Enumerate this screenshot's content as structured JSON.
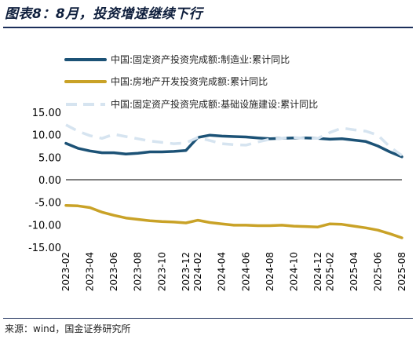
{
  "header": {
    "title": "图表8：8月，投资增速继续下行",
    "source": "来源：wind，国金证券研究所"
  },
  "chart_data": {
    "type": "line",
    "title": "图表8：8月，投资增速继续下行",
    "xlabel": "",
    "ylabel": "",
    "ylim": [
      -15,
      15
    ],
    "yticks": [
      15,
      10,
      5,
      0,
      -5,
      -10,
      -15
    ],
    "ytick_labels": [
      "15.00",
      "10.00",
      "5.00",
      "0.00",
      "-5.00",
      "-10.00",
      "-15.00"
    ],
    "x": [
      "2023-02",
      "2023-03",
      "2023-04",
      "2023-05",
      "2023-06",
      "2023-07",
      "2023-08",
      "2023-09",
      "2023-10",
      "2023-11",
      "2023-12",
      "2024-02",
      "2024-03",
      "2024-04",
      "2024-05",
      "2024-06",
      "2024-07",
      "2024-08",
      "2024-09",
      "2024-10",
      "2024-11",
      "2024-12",
      "2025-02",
      "2025-03",
      "2025-04",
      "2025-05",
      "2025-06",
      "2025-07",
      "2025-08"
    ],
    "x_tick_labels": [
      "2023-02",
      "2023-04",
      "2023-06",
      "2023-08",
      "2023-10",
      "2023-12",
      "2024-02",
      "2024-04",
      "2024-06",
      "2024-08",
      "2024-10",
      "2024-12",
      "2025-02",
      "2025-04",
      "2025-06",
      "2025-08"
    ],
    "grid": false,
    "legend_position": "top",
    "series": [
      {
        "name": "中国:固定资产投资完成额:制造业:累计同比",
        "color": "#1c5276",
        "style": "solid",
        "values": [
          8.1,
          7.0,
          6.4,
          6.0,
          6.0,
          5.7,
          5.9,
          6.2,
          6.2,
          6.3,
          6.5,
          9.4,
          9.9,
          9.7,
          9.6,
          9.5,
          9.3,
          9.1,
          9.2,
          9.3,
          9.3,
          9.2,
          9.0,
          9.1,
          8.8,
          8.5,
          7.5,
          6.2,
          5.1
        ]
      },
      {
        "name": "中国:房地产开发投资完成额:累计同比",
        "color": "#c9a227",
        "style": "solid",
        "values": [
          -5.7,
          -5.8,
          -6.2,
          -7.2,
          -7.9,
          -8.5,
          -8.8,
          -9.1,
          -9.3,
          -9.4,
          -9.6,
          -9.0,
          -9.5,
          -9.8,
          -10.1,
          -10.1,
          -10.2,
          -10.2,
          -10.1,
          -10.3,
          -10.4,
          -10.5,
          -9.8,
          -9.9,
          -10.3,
          -10.7,
          -11.2,
          -12.0,
          -12.9
        ]
      },
      {
        "name": "中国:固定资产投资完成额:基础设施建设:累计同比",
        "color": "#d6e4f0",
        "style": "dashed",
        "values": [
          12.2,
          10.8,
          9.8,
          9.2,
          10.1,
          9.6,
          9.1,
          8.6,
          8.3,
          8.0,
          8.2,
          9.4,
          8.7,
          8.0,
          7.8,
          7.7,
          8.4,
          9.0,
          9.2,
          9.4,
          9.2,
          9.2,
          10.5,
          11.5,
          11.1,
          10.8,
          9.9,
          7.3,
          5.4
        ]
      }
    ]
  }
}
